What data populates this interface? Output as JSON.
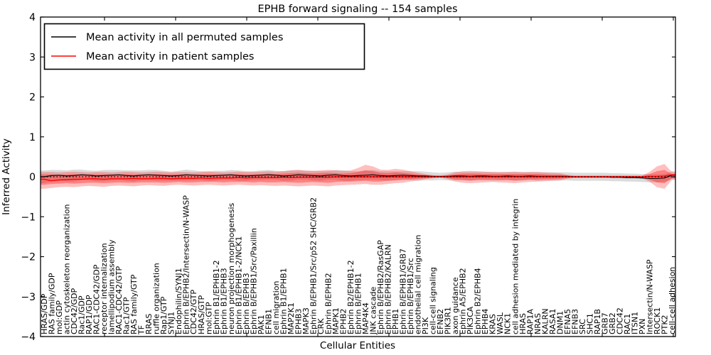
{
  "figure": {
    "title": "EPHB forward signaling -- 154 samples",
    "xlabel": "Cellular Entities",
    "ylabel": "Inferred Activity",
    "y_tick_labels": [
      "4",
      "3",
      "2",
      "1",
      "0",
      "−1",
      "−2",
      "−3",
      "−4"
    ],
    "legend": [
      {
        "label": "Mean activity in all permuted samples",
        "color": "#000000"
      },
      {
        "label": "Mean activity in patient samples",
        "color": "#ff0000"
      }
    ]
  },
  "chart_data": {
    "type": "line",
    "title": "EPHB forward signaling -- 154 samples",
    "xlabel": "Cellular Entities",
    "ylabel": "Inferred Activity",
    "ylim": [
      -4,
      4
    ],
    "y_ticks": [
      4,
      3,
      2,
      1,
      0,
      -1,
      -2,
      -3,
      -4
    ],
    "grid": false,
    "legend_position": "upper left",
    "zero_reference_line": 0,
    "categories": [
      "HRAS/GDP",
      "RAS family/GDP",
      "mol:GDP",
      "actin cytoskeleton reorganization",
      "CDC42/GDP",
      "Rac1/GDP",
      "RAP1/GDP",
      "RAC1-CDC42/GDP",
      "receptor internalization",
      "lamellipodium assembly",
      "RAC1-CDC42/GTP",
      "Rac1/GTP",
      "RAS family/GTP",
      "TF",
      "RRAS",
      "ruffle organization",
      "Rap1/GTP",
      "SYNJ1",
      "Endophilin/SYNJ1",
      "Ephrin B/EPHB2/Intersectin/N-WASP",
      "CDC42/GTP",
      "HRAS/GTP",
      "mol:GTP",
      "Ephrin B1/EPHB1-2",
      "Ephrin B1/EPHB3",
      "neuron projection morphogenesis",
      "Ephrin B1/EPHB1-2/NCK1",
      "Ephrin B/EPHB3",
      "Ephrin B/EPHB1/Src/Paxillin",
      "PAK1",
      "EFNB1",
      "cell migration",
      "Ephrin B1/EPHB1",
      "MAP2K1",
      "EPHB3",
      "MAPK3",
      "Ephrin B/EPHB1/Src/p52 SHC/GRB2",
      "CRK",
      "Ephrin B/EPHB2",
      "MAPK1",
      "EPHB2",
      "Ephrin B2/EPHB1-2",
      "Ephrin B/EPHB1",
      "MAP4K4",
      "JNK cascade",
      "Ephrin B/EPHB2/RasGAP",
      "Ephrin B/EPHB2/KALRN",
      "EPHB1",
      "Ephrin B/EPHB1/GRB7",
      "Ephrin B/EPHB1/Src",
      "endothelial cell migration",
      "PI3K",
      "cell-cell signaling",
      "EFNB2",
      "PIK3R1",
      "axon guidance",
      "Ephrin A5/EPHB2",
      "PIK3CA",
      "Ephrin B2/EPHB4",
      "EPHB4",
      "KRAS",
      "WASL",
      "NCK1",
      "cell adhesion mediated by integrin",
      "HRAS",
      "RAP1A",
      "NRAS",
      "KALRN",
      "RASA1",
      "DNM1",
      "EFNA5",
      "EFNB3",
      "SRC",
      "SHC1",
      "RAP1B",
      "GRB7",
      "GRB2",
      "CDC42",
      "RAC1",
      "ITSN1",
      "PXN",
      "Intersectin/N-WASP",
      "ROCK1",
      "PTK2",
      "cell-cell adhesion"
    ],
    "series": [
      {
        "name": "Mean activity in all permuted samples",
        "color": "#000000",
        "style": "solid",
        "values": [
          0.0,
          0.03,
          0.04,
          0.02,
          0.03,
          0.05,
          0.04,
          0.02,
          0.03,
          0.04,
          0.05,
          0.03,
          0.02,
          0.04,
          0.05,
          0.04,
          0.03,
          0.02,
          0.03,
          0.05,
          0.04,
          0.03,
          0.02,
          0.03,
          0.04,
          0.05,
          0.03,
          0.02,
          0.03,
          0.04,
          0.05,
          0.04,
          0.02,
          0.03,
          0.05,
          0.04,
          0.03,
          0.02,
          0.04,
          0.05,
          0.03,
          0.02,
          0.03,
          0.04,
          0.05,
          0.03,
          0.02,
          0.03,
          0.04,
          0.03,
          0.02,
          0.02,
          0.01,
          0.01,
          0.01,
          0.02,
          0.02,
          0.01,
          0.02,
          0.02,
          0.01,
          0.01,
          0.02,
          0.01,
          0.01,
          0.02,
          0.01,
          0.01,
          0.01,
          0.01,
          0.01,
          0.0,
          0.0,
          0.0,
          0.0,
          0.0,
          -0.01,
          -0.01,
          -0.02,
          -0.02,
          -0.03,
          -0.04,
          -0.04,
          -0.03,
          0.04
        ]
      },
      {
        "name": "Mean activity in patient samples",
        "color": "#ff0000",
        "style": "solid",
        "values": [
          -0.06,
          -0.1,
          -0.08,
          -0.07,
          -0.06,
          -0.06,
          -0.05,
          -0.05,
          -0.06,
          -0.05,
          -0.05,
          -0.05,
          -0.04,
          -0.05,
          -0.05,
          -0.04,
          -0.04,
          -0.05,
          -0.04,
          -0.04,
          -0.04,
          -0.03,
          -0.04,
          -0.03,
          -0.03,
          -0.03,
          -0.02,
          -0.03,
          -0.02,
          -0.02,
          -0.02,
          -0.02,
          -0.01,
          -0.02,
          -0.01,
          -0.01,
          -0.01,
          -0.01,
          -0.01,
          0.0,
          0.0,
          0.0,
          0.0,
          0.0,
          0.0,
          0.0,
          0.0,
          0.0,
          0.0,
          0.0,
          0.0,
          0.0,
          0.0,
          0.0,
          0.0,
          0.0,
          0.0,
          0.0,
          0.0,
          0.0,
          0.0,
          0.0,
          0.0,
          0.0,
          0.0,
          0.0,
          0.0,
          0.0,
          0.0,
          0.0,
          0.0,
          0.0,
          0.0,
          0.0,
          0.0,
          0.0,
          0.0,
          0.0,
          0.0,
          0.0,
          0.0,
          0.01,
          0.01,
          0.02,
          0.05
        ]
      }
    ],
    "bands": [
      {
        "name": "permuted samples spread",
        "color": "#a0a0a0",
        "opacity": 0.38,
        "center_series": 0,
        "half_width": [
          0.16,
          0.14,
          0.13,
          0.14,
          0.15,
          0.13,
          0.12,
          0.13,
          0.14,
          0.13,
          0.12,
          0.13,
          0.14,
          0.12,
          0.12,
          0.13,
          0.12,
          0.11,
          0.12,
          0.13,
          0.12,
          0.11,
          0.12,
          0.12,
          0.11,
          0.12,
          0.13,
          0.12,
          0.11,
          0.12,
          0.12,
          0.11,
          0.12,
          0.13,
          0.12,
          0.11,
          0.12,
          0.12,
          0.11,
          0.12,
          0.13,
          0.12,
          0.11,
          0.12,
          0.12,
          0.11,
          0.12,
          0.11,
          0.1,
          0.11,
          0.12,
          0.11,
          0.1,
          0.09,
          0.1,
          0.11,
          0.1,
          0.11,
          0.1,
          0.1,
          0.11,
          0.1,
          0.1,
          0.11,
          0.1,
          0.1,
          0.11,
          0.1,
          0.1,
          0.1,
          0.1,
          0.1,
          0.1,
          0.1,
          0.1,
          0.1,
          0.1,
          0.1,
          0.1,
          0.1,
          0.1,
          0.1,
          0.1,
          0.1,
          0.1
        ]
      },
      {
        "name": "patient samples outer spread",
        "color": "#ff0000",
        "opacity": 0.25,
        "upper": [
          0.12,
          0.12,
          0.11,
          0.12,
          0.13,
          0.12,
          0.11,
          0.12,
          0.12,
          0.11,
          0.12,
          0.13,
          0.12,
          0.11,
          0.12,
          0.13,
          0.12,
          0.11,
          0.12,
          0.12,
          0.11,
          0.12,
          0.13,
          0.12,
          0.11,
          0.12,
          0.13,
          0.12,
          0.12,
          0.13,
          0.14,
          0.13,
          0.14,
          0.16,
          0.17,
          0.16,
          0.15,
          0.16,
          0.17,
          0.16,
          0.15,
          0.16,
          0.22,
          0.3,
          0.26,
          0.18,
          0.17,
          0.2,
          0.18,
          0.14,
          0.1,
          0.07,
          0.04,
          0.02,
          0.06,
          0.11,
          0.14,
          0.15,
          0.14,
          0.13,
          0.12,
          0.12,
          0.12,
          0.13,
          0.12,
          0.12,
          0.12,
          0.11,
          0.1,
          0.09,
          0.05,
          0.03,
          0.03,
          0.03,
          0.03,
          0.03,
          0.03,
          0.03,
          0.03,
          0.03,
          0.03,
          0.12,
          0.26,
          0.32,
          0.12
        ],
        "lower": [
          -0.3,
          -0.28,
          -0.26,
          -0.25,
          -0.26,
          -0.24,
          -0.23,
          -0.24,
          -0.25,
          -0.23,
          -0.22,
          -0.23,
          -0.24,
          -0.22,
          -0.21,
          -0.22,
          -0.23,
          -0.21,
          -0.2,
          -0.21,
          -0.22,
          -0.21,
          -0.2,
          -0.21,
          -0.22,
          -0.21,
          -0.2,
          -0.21,
          -0.22,
          -0.21,
          -0.22,
          -0.23,
          -0.22,
          -0.23,
          -0.24,
          -0.23,
          -0.22,
          -0.23,
          -0.24,
          -0.22,
          -0.21,
          -0.2,
          -0.19,
          -0.18,
          -0.2,
          -0.2,
          -0.18,
          -0.16,
          -0.15,
          -0.12,
          -0.09,
          -0.06,
          -0.04,
          -0.02,
          -0.06,
          -0.12,
          -0.15,
          -0.16,
          -0.15,
          -0.14,
          -0.13,
          -0.14,
          -0.15,
          -0.16,
          -0.14,
          -0.13,
          -0.12,
          -0.11,
          -0.1,
          -0.09,
          -0.05,
          -0.03,
          -0.03,
          -0.03,
          -0.03,
          -0.03,
          -0.03,
          -0.03,
          -0.03,
          -0.03,
          -0.03,
          -0.12,
          -0.26,
          -0.3,
          -0.08
        ]
      },
      {
        "name": "patient samples inner spread",
        "color": "#ff0000",
        "opacity": 0.32,
        "upper": [
          0.06,
          0.06,
          0.05,
          0.06,
          0.07,
          0.06,
          0.06,
          0.06,
          0.06,
          0.06,
          0.06,
          0.07,
          0.06,
          0.06,
          0.06,
          0.07,
          0.06,
          0.06,
          0.06,
          0.06,
          0.06,
          0.06,
          0.07,
          0.06,
          0.06,
          0.06,
          0.07,
          0.06,
          0.06,
          0.07,
          0.08,
          0.07,
          0.08,
          0.09,
          0.1,
          0.09,
          0.08,
          0.09,
          0.1,
          0.09,
          0.08,
          0.09,
          0.12,
          0.16,
          0.14,
          0.1,
          0.09,
          0.11,
          0.1,
          0.08,
          0.06,
          0.04,
          0.02,
          0.01,
          0.03,
          0.06,
          0.08,
          0.08,
          0.08,
          0.07,
          0.07,
          0.07,
          0.07,
          0.07,
          0.07,
          0.07,
          0.07,
          0.06,
          0.05,
          0.05,
          0.03,
          0.02,
          0.02,
          0.02,
          0.02,
          0.02,
          0.02,
          0.02,
          0.02,
          0.02,
          0.02,
          0.07,
          0.14,
          0.17,
          0.07
        ],
        "lower": [
          -0.2,
          -0.18,
          -0.17,
          -0.16,
          -0.17,
          -0.16,
          -0.15,
          -0.15,
          -0.16,
          -0.15,
          -0.14,
          -0.15,
          -0.15,
          -0.14,
          -0.14,
          -0.14,
          -0.15,
          -0.14,
          -0.13,
          -0.14,
          -0.14,
          -0.13,
          -0.13,
          -0.13,
          -0.14,
          -0.13,
          -0.13,
          -0.13,
          -0.14,
          -0.13,
          -0.14,
          -0.14,
          -0.13,
          -0.14,
          -0.15,
          -0.14,
          -0.13,
          -0.14,
          -0.15,
          -0.13,
          -0.12,
          -0.12,
          -0.11,
          -0.1,
          -0.12,
          -0.12,
          -0.1,
          -0.09,
          -0.08,
          -0.07,
          -0.05,
          -0.04,
          -0.02,
          -0.01,
          -0.03,
          -0.07,
          -0.08,
          -0.09,
          -0.08,
          -0.08,
          -0.07,
          -0.08,
          -0.08,
          -0.09,
          -0.08,
          -0.07,
          -0.07,
          -0.06,
          -0.06,
          -0.05,
          -0.03,
          -0.02,
          -0.02,
          -0.02,
          -0.02,
          -0.02,
          -0.02,
          -0.02,
          -0.02,
          -0.02,
          -0.02,
          -0.07,
          -0.14,
          -0.16,
          -0.04
        ]
      }
    ]
  }
}
